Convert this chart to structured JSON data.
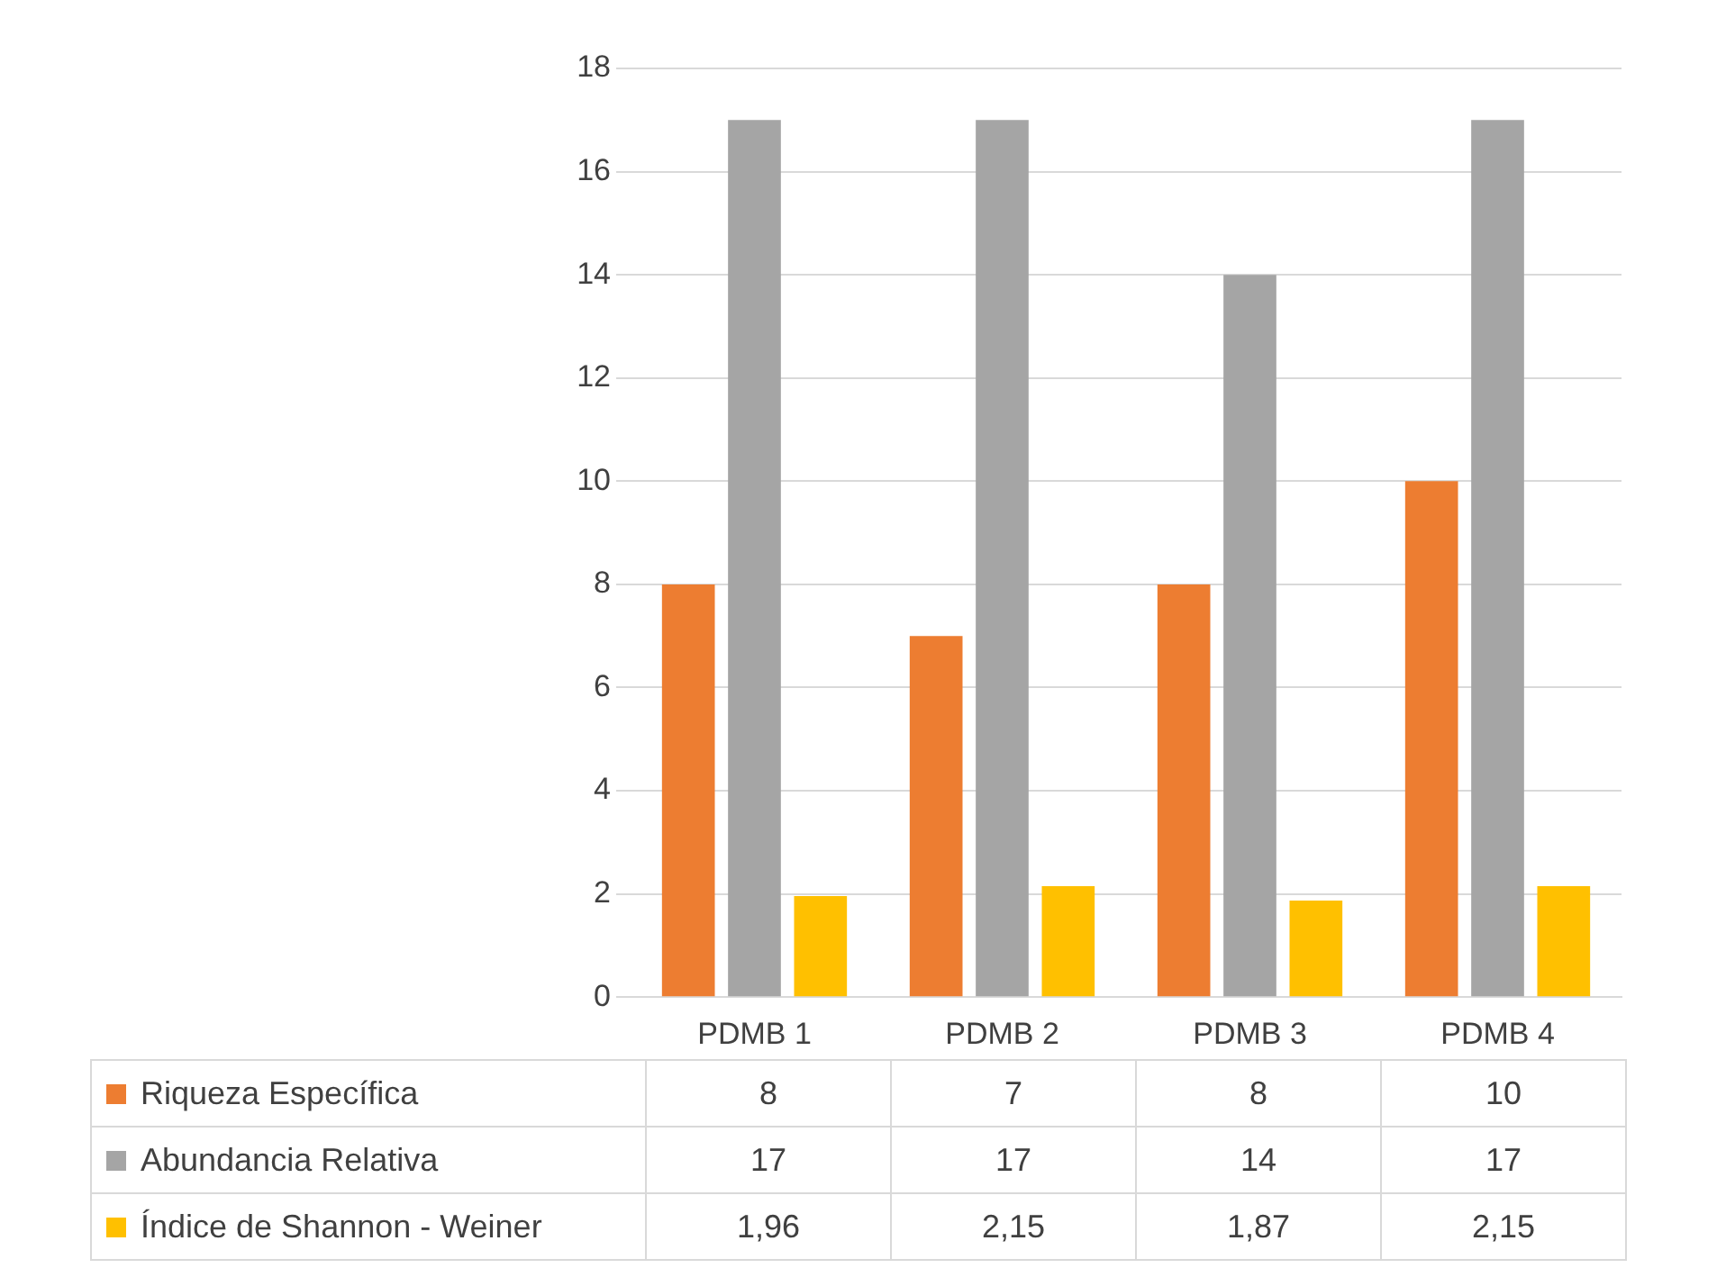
{
  "chart_data": {
    "type": "bar",
    "categories": [
      "PDMB 1",
      "PDMB 2",
      "PDMB 3",
      "PDMB 4"
    ],
    "series": [
      {
        "name": "Riqueza Específica",
        "color": "#ed7d31",
        "values": [
          8,
          7,
          8,
          10
        ],
        "value_labels": [
          "8",
          "7",
          "8",
          "10"
        ]
      },
      {
        "name": "Abundancia Relativa",
        "color": "#a5a5a5",
        "values": [
          17,
          17,
          14,
          17
        ],
        "value_labels": [
          "17",
          "17",
          "14",
          "17"
        ]
      },
      {
        "name": "Índice de Shannon - Weiner",
        "color": "#ffc000",
        "values": [
          1.96,
          2.15,
          1.87,
          2.15
        ],
        "value_labels": [
          "1,96",
          "2,15",
          "1,87",
          "2,15"
        ]
      }
    ],
    "ylim": [
      0,
      18
    ],
    "yticks": [
      0,
      2,
      4,
      6,
      8,
      10,
      12,
      14,
      16,
      18
    ],
    "grid": "y",
    "legend": "bottom"
  }
}
